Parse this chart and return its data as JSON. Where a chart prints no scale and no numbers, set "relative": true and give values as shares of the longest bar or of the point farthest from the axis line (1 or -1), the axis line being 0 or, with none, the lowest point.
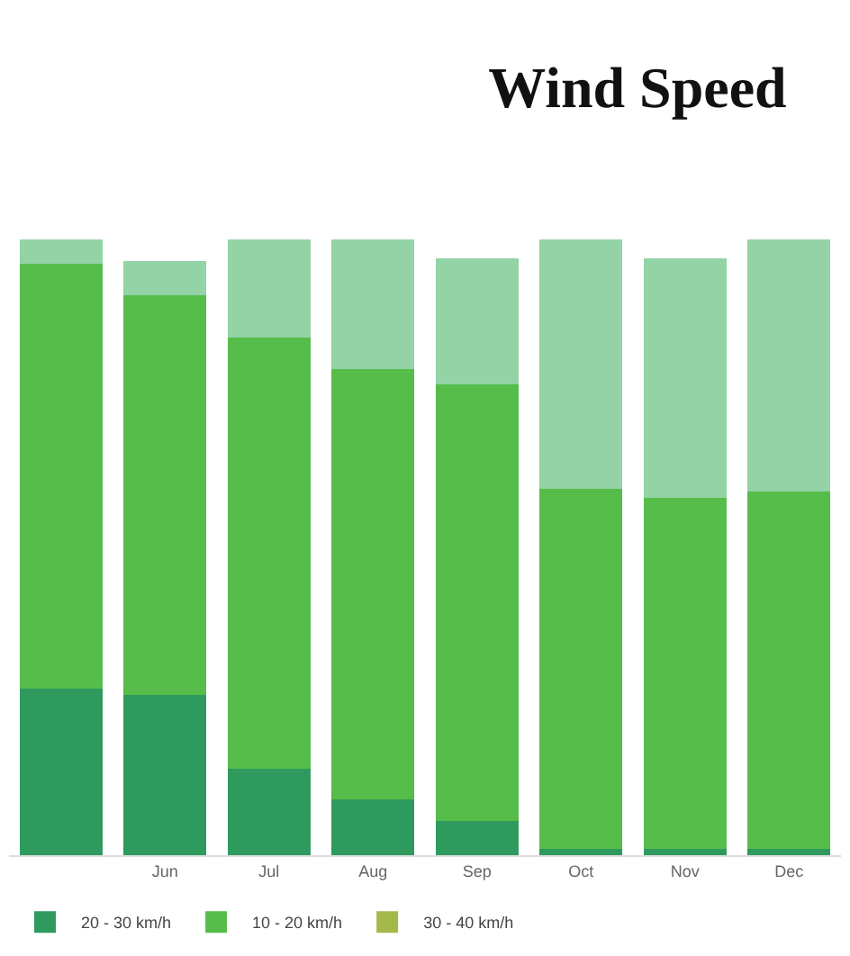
{
  "chart_data": {
    "type": "bar",
    "title": "Wind Speed",
    "stacked": true,
    "relative": true,
    "legend": "bottom",
    "categories": [
      null,
      "Jun",
      "Jul",
      "Aug",
      "Sep",
      "Oct",
      "Nov",
      "Dec"
    ],
    "series": [
      {
        "name": "20 - 30 km/h",
        "color": "#2e9a5e",
        "values": [
          0.27,
          0.26,
          0.14,
          0.09,
          0.055,
          0.01,
          0.01,
          0.01
        ]
      },
      {
        "name": "10 - 20 km/h",
        "color": "#56bd4b",
        "values": [
          0.69,
          0.65,
          0.7,
          0.7,
          0.71,
          0.585,
          0.57,
          0.58
        ]
      },
      {
        "color": "#93d3a6",
        "values": [
          0.04,
          0.055,
          0.16,
          0.21,
          0.205,
          0.405,
          0.39,
          0.41
        ]
      },
      {
        "name": "30 - 40 km/h",
        "color": "#a3b94c",
        "values": [
          null,
          null,
          null,
          null,
          null,
          null,
          null,
          null
        ]
      }
    ]
  }
}
